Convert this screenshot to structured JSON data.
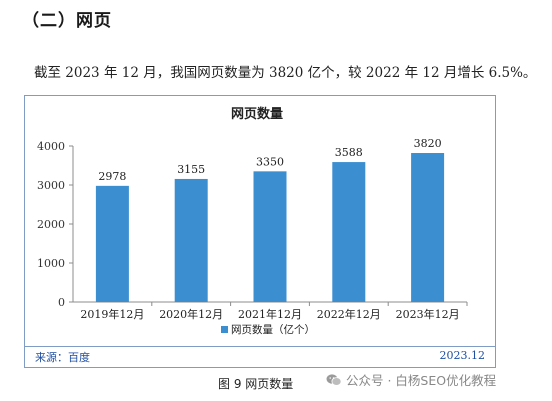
{
  "section_title": "（二）网页",
  "paragraph": "截至 2023 年 12 月，我国网页数量为 3820 亿个，较 2022 年 12 月增长 6.5%。",
  "chart_data": {
    "type": "bar",
    "title": "网页数量",
    "categories": [
      "2019年12月",
      "2020年12月",
      "2021年12月",
      "2022年12月",
      "2023年12月"
    ],
    "series": [
      {
        "name": "网页数量（亿个）",
        "values": [
          2978,
          3155,
          3350,
          3588,
          3820
        ],
        "color": "#3b8fd1"
      }
    ],
    "ylim": [
      0,
      4000
    ],
    "yticks": [
      0,
      1000,
      2000,
      3000,
      4000
    ],
    "xlabel": "",
    "ylabel": "",
    "grid": false,
    "legend_position": "bottom"
  },
  "source_label": "来源：百度",
  "date_label": "2023.12",
  "figure_caption": "图 9  网页数量",
  "watermark": {
    "icon": "wechat-icon",
    "text": "公众号 · 白杨SEO优化教程"
  }
}
